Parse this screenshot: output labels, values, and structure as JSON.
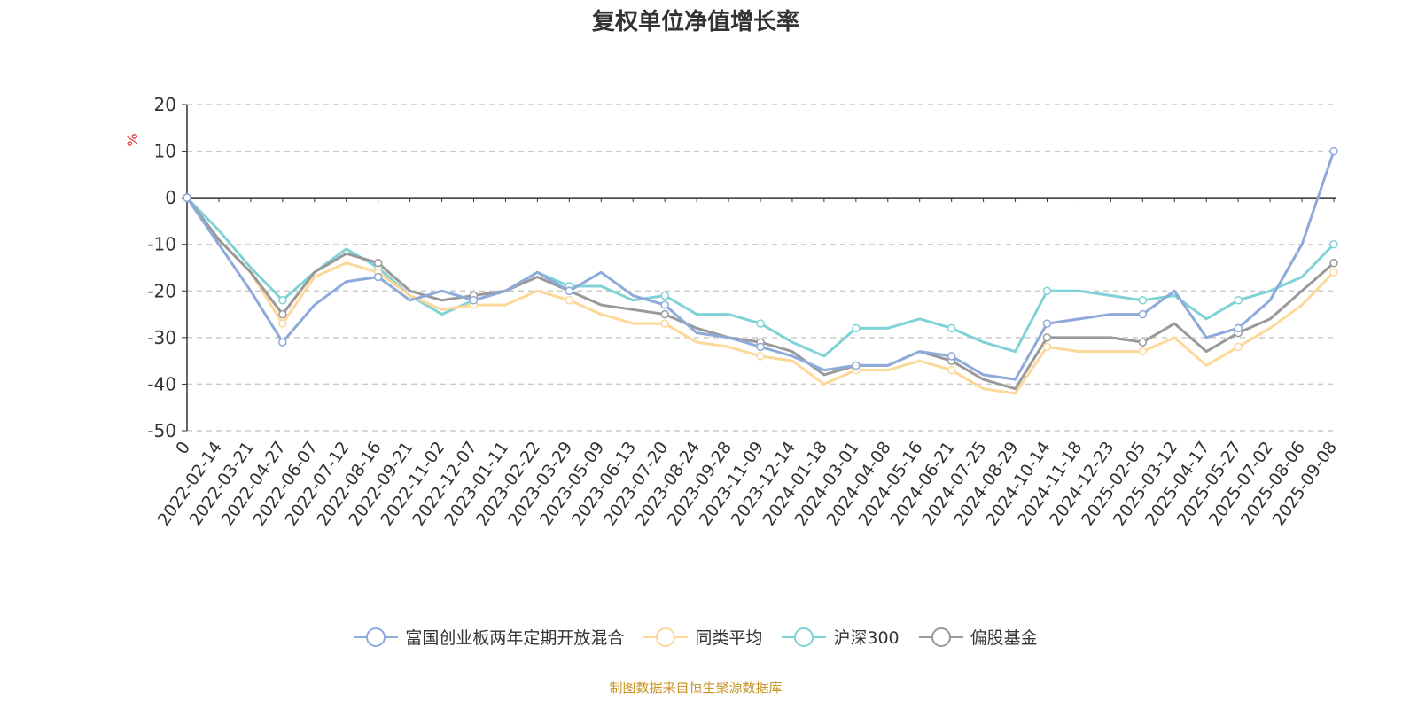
{
  "chart_data": {
    "type": "line",
    "title": "复权单位净值增长率",
    "ylabel": "%",
    "ylim": [
      -50,
      20
    ],
    "yticks": [
      20,
      10,
      0,
      -10,
      -20,
      -30,
      -40,
      -50
    ],
    "grid": true,
    "legend_position": "bottom",
    "x": [
      "0",
      "2022-02-14",
      "2022-03-21",
      "2022-04-27",
      "2022-06-07",
      "2022-07-12",
      "2022-08-16",
      "2022-09-21",
      "2022-11-02",
      "2022-12-07",
      "2023-01-11",
      "2023-02-22",
      "2023-03-29",
      "2023-05-09",
      "2023-06-13",
      "2023-07-20",
      "2023-08-24",
      "2023-09-28",
      "2023-11-09",
      "2023-12-14",
      "2024-01-18",
      "2024-03-01",
      "2024-04-08",
      "2024-05-16",
      "2024-06-21",
      "2024-07-25",
      "2024-08-29",
      "2024-10-14",
      "2024-11-18",
      "2024-12-23",
      "2025-02-05",
      "2025-03-12",
      "2025-04-17",
      "2025-05-27",
      "2025-07-02",
      "2025-08-06",
      "2025-09-08"
    ],
    "series": [
      {
        "name": "富国创业板两年定期开放混合",
        "color": "#8eaadb",
        "values": [
          0,
          -10,
          -20,
          -31,
          -23,
          -18,
          -17,
          -22,
          -20,
          -22,
          -20,
          -16,
          -20,
          -16,
          -21,
          -23,
          -29,
          -30,
          -32,
          -34,
          -37,
          -36,
          -36,
          -33,
          -34,
          -38,
          -39,
          -27,
          -26,
          -25,
          -25,
          -20,
          -30,
          -28,
          -22,
          -10,
          10
        ]
      },
      {
        "name": "同类平均",
        "color": "#fdd898",
        "values": [
          0,
          -9,
          -16,
          -27,
          -17,
          -14,
          -16,
          -21,
          -24,
          -23,
          -23,
          -20,
          -22,
          -25,
          -27,
          -27,
          -31,
          -32,
          -34,
          -35,
          -40,
          -37,
          -37,
          -35,
          -37,
          -41,
          -42,
          -32,
          -33,
          -33,
          -33,
          -30,
          -36,
          -32,
          -28,
          -23,
          -16
        ]
      },
      {
        "name": "沪深300",
        "color": "#7fd3d6",
        "values": [
          0,
          -7,
          -15,
          -22,
          -16,
          -11,
          -15,
          -21,
          -25,
          -22,
          -20,
          -16,
          -19,
          -19,
          -22,
          -21,
          -25,
          -25,
          -27,
          -31,
          -34,
          -28,
          -28,
          -26,
          -28,
          -31,
          -33,
          -20,
          -20,
          -21,
          -22,
          -21,
          -26,
          -22,
          -20,
          -17,
          -10
        ]
      },
      {
        "name": "偏股基金",
        "color": "#999999",
        "values": [
          0,
          -9,
          -16,
          -25,
          -16,
          -12,
          -14,
          -20,
          -22,
          -21,
          -20,
          -17,
          -20,
          -23,
          -24,
          -25,
          -28,
          -30,
          -31,
          -33,
          -38,
          -36,
          -36,
          -33,
          -35,
          -39,
          -41,
          -30,
          -30,
          -30,
          -31,
          -27,
          -33,
          -29,
          -26,
          -20,
          -14
        ]
      }
    ]
  },
  "source": "制图数据来自恒生聚源数据库"
}
